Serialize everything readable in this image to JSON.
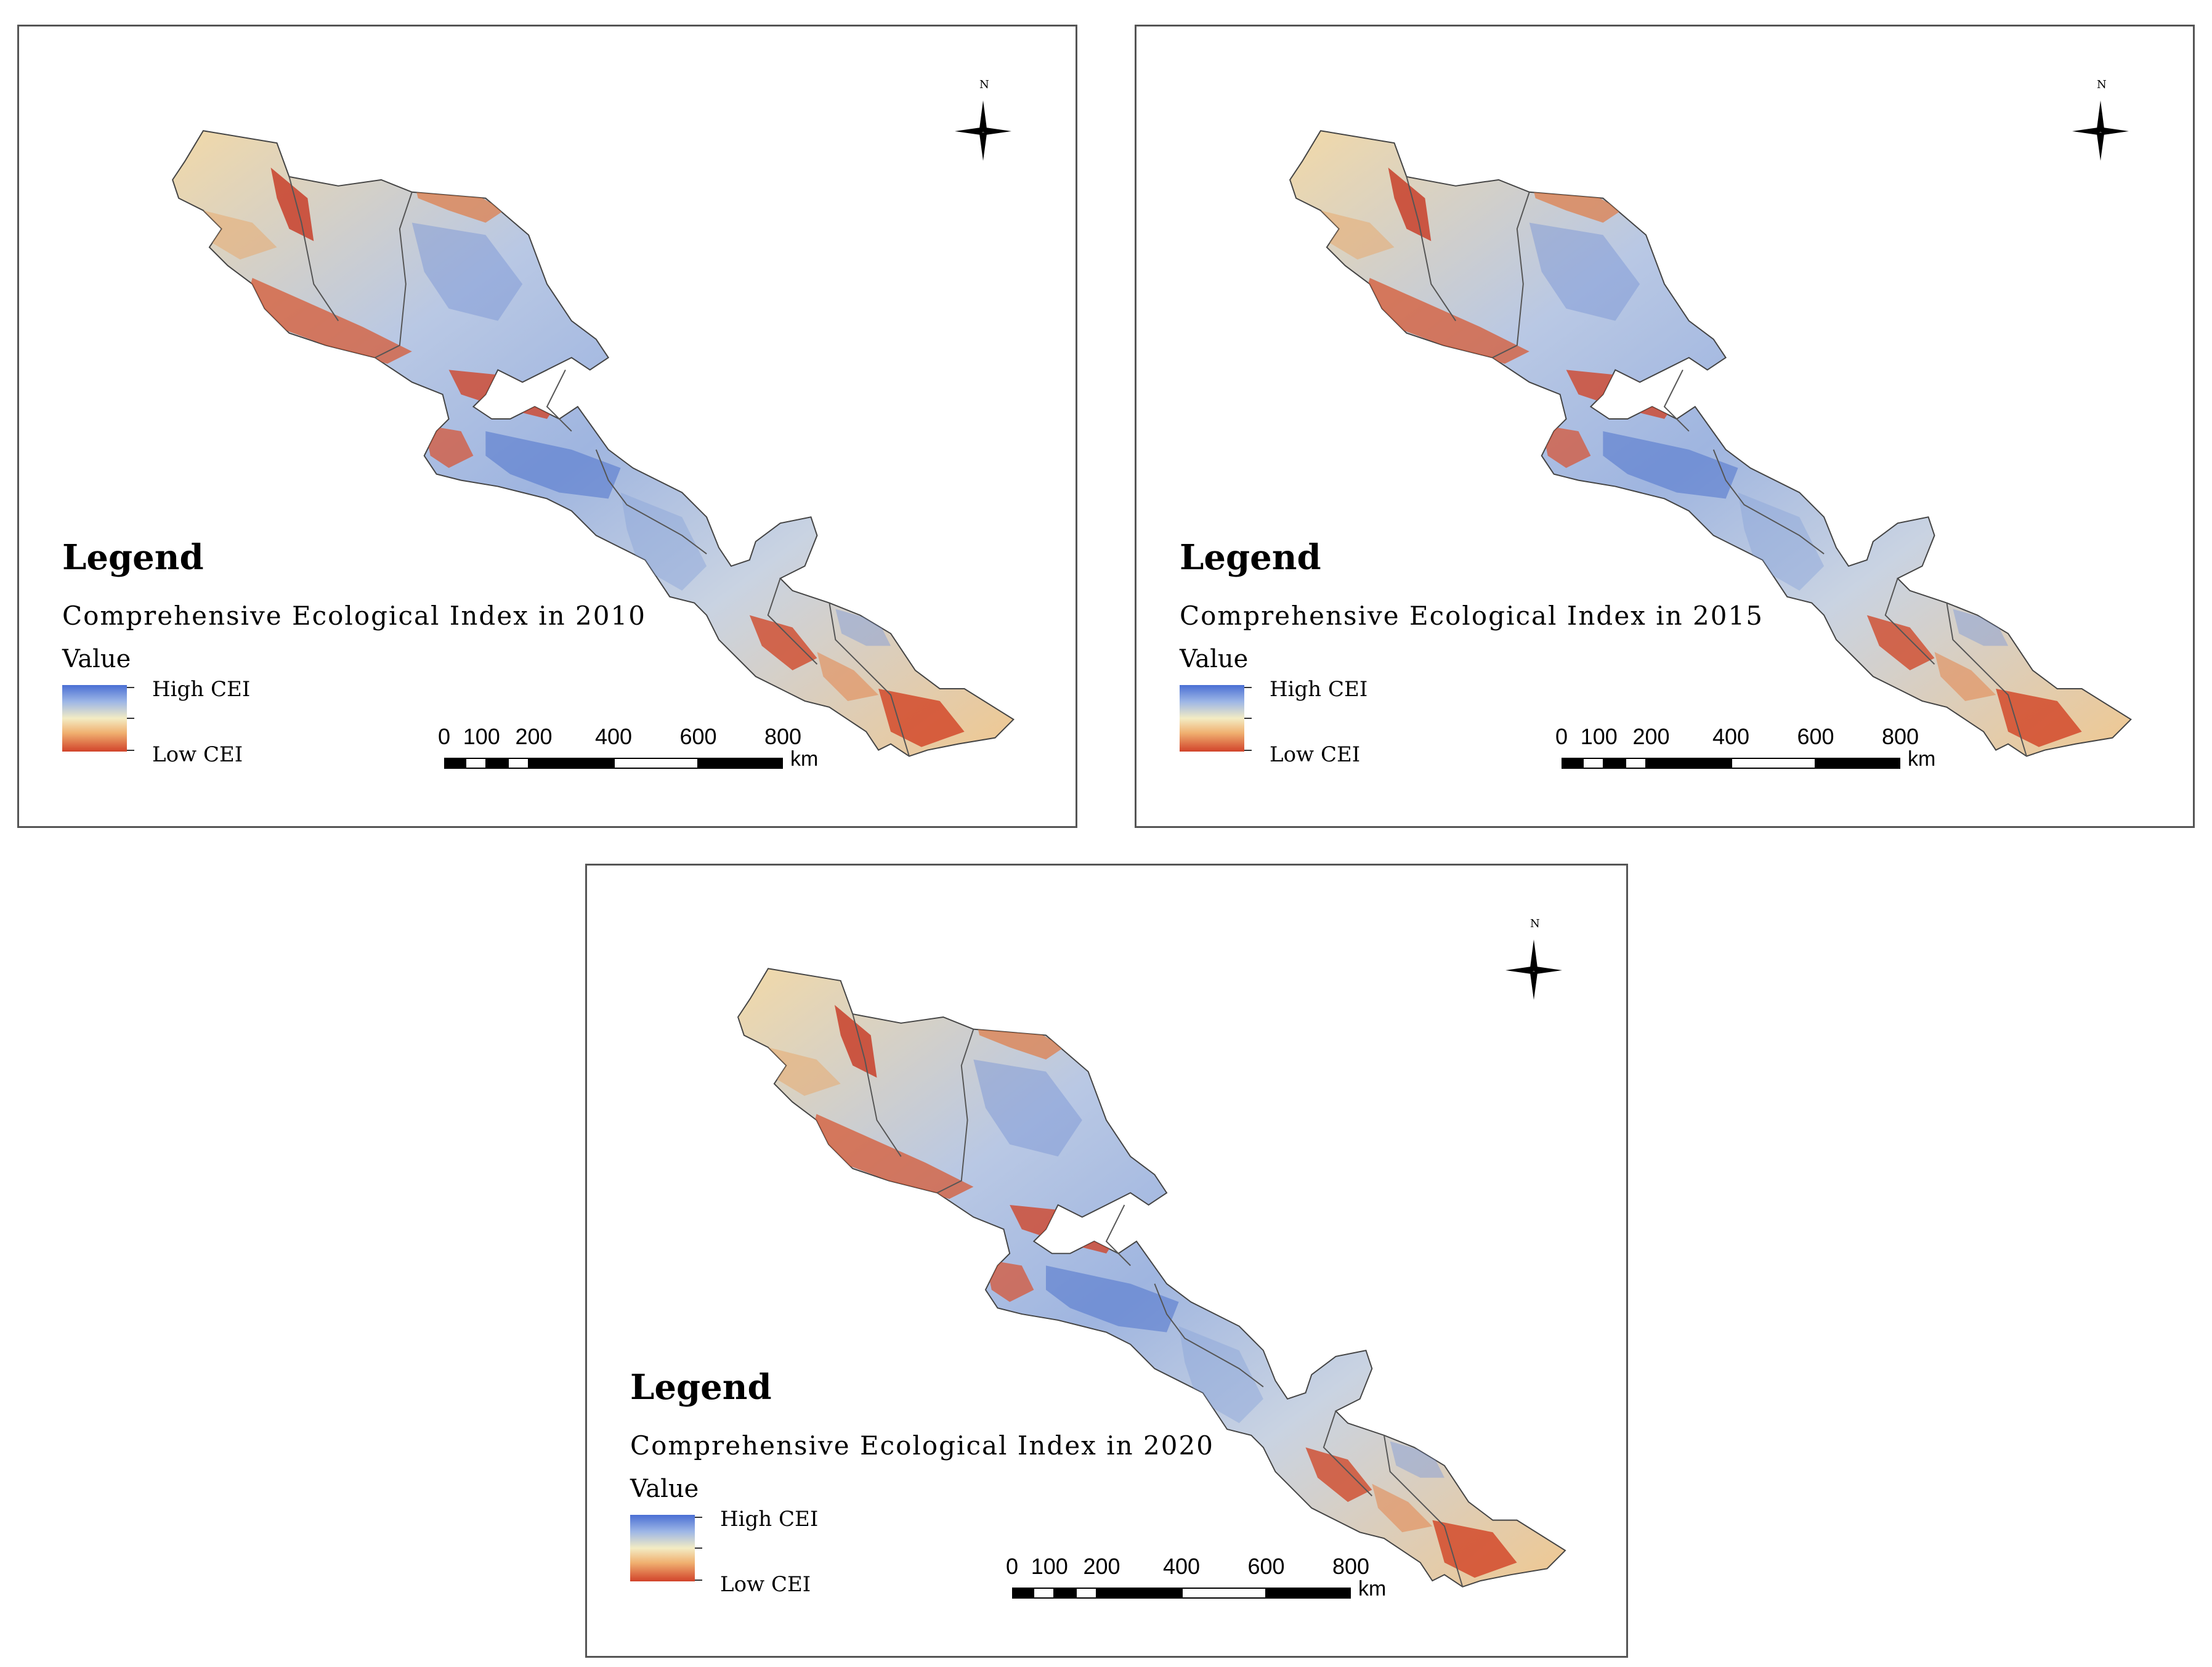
{
  "legend": {
    "title": "Legend",
    "value_label": "Value",
    "high_label": "High CEI",
    "low_label": "Low CEI",
    "ramp_colors": [
      "#4a6fd4",
      "#9db6e6",
      "#f3ecc4",
      "#f0b070",
      "#d2432a"
    ]
  },
  "scale": {
    "ticks": [
      "0",
      "100",
      "200",
      "400",
      "600",
      "800"
    ],
    "unit": "km"
  },
  "north_label": "N",
  "panels": [
    {
      "subtitle": "Comprehensive Ecological Index in 2010"
    },
    {
      "subtitle": "Comprehensive Ecological Index in 2015"
    },
    {
      "subtitle": "Comprehensive Ecological Index in 2020"
    }
  ]
}
